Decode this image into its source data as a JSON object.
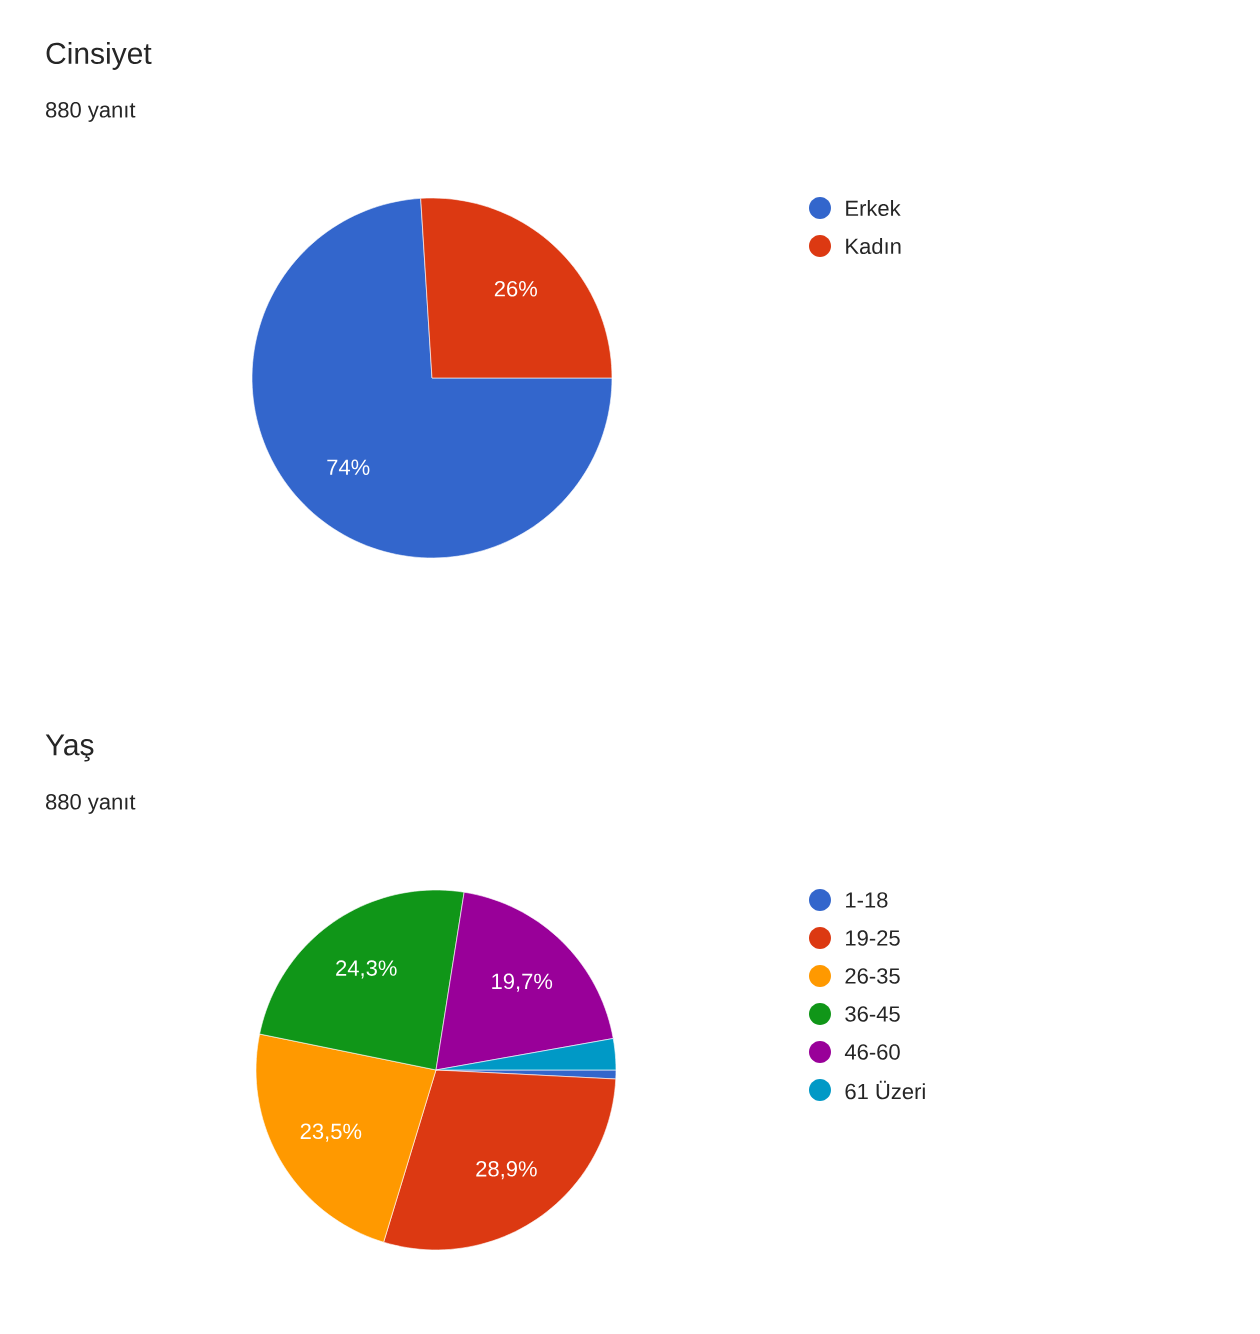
{
  "chart_data": [
    {
      "type": "pie",
      "title": "Cinsiyet",
      "subtitle": "880 yanıt",
      "categories": [
        "Erkek",
        "Kadın"
      ],
      "values": [
        74,
        26
      ],
      "colors": [
        "#3366cc",
        "#dc3912"
      ],
      "value_labels": [
        "74%",
        "26%"
      ],
      "legend": "right"
    },
    {
      "type": "pie",
      "title": "Yaş",
      "subtitle": "880 yanıt",
      "categories": [
        "1-18",
        "19-25",
        "26-35",
        "36-45",
        "46-60",
        "61 Üzeri"
      ],
      "values": [
        0.8,
        28.9,
        23.5,
        24.3,
        19.7,
        2.8
      ],
      "colors": [
        "#3366cc",
        "#dc3912",
        "#ff9900",
        "#109618",
        "#990099",
        "#0099c6"
      ],
      "value_labels": [
        null,
        "28,9%",
        "23,5%",
        "24,3%",
        "19,7%",
        null
      ],
      "legend": "right"
    }
  ]
}
